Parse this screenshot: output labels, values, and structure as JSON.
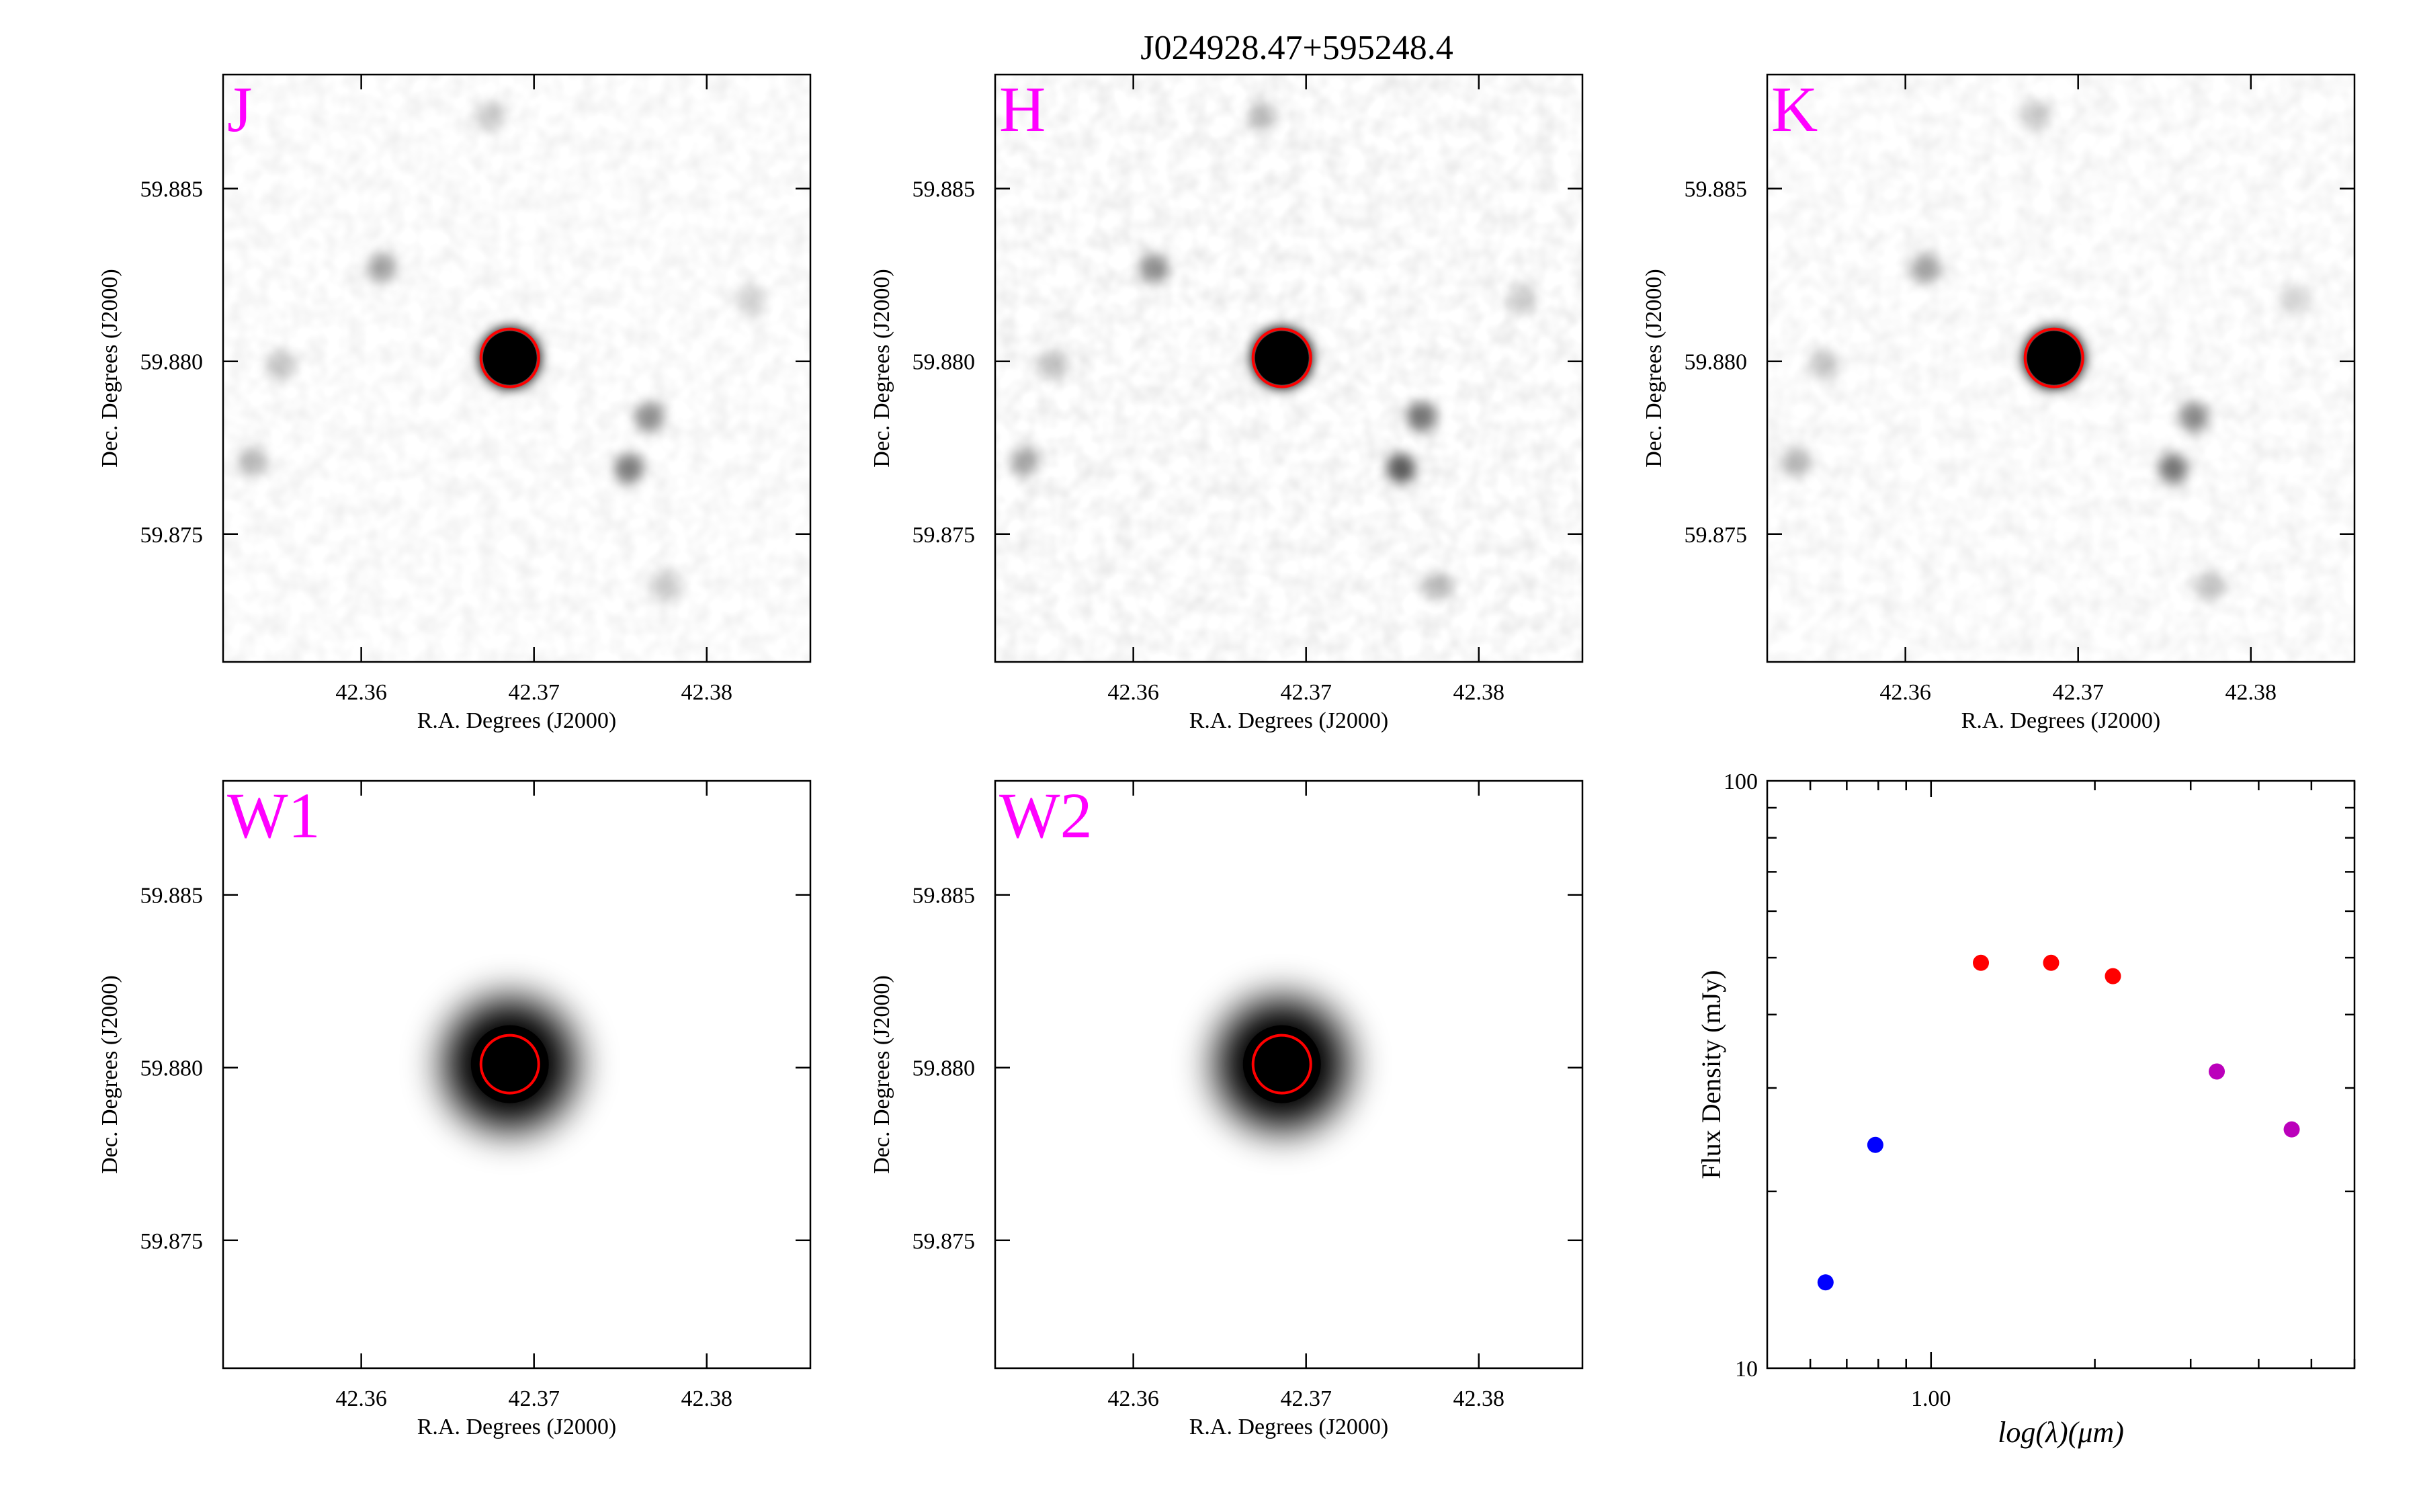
{
  "figure": {
    "title": "J024928.47+595248.4"
  },
  "image_panels": [
    {
      "band": "J",
      "grid": 0,
      "dark": 0.55
    },
    {
      "band": "H",
      "grid": 1,
      "dark": 0.72
    },
    {
      "band": "K",
      "grid": 2,
      "dark": 0.58
    },
    {
      "band": "W1",
      "grid": 3,
      "dark": 1.0
    },
    {
      "band": "W2",
      "grid": 4,
      "dark": 1.0
    }
  ],
  "image_axes": {
    "xlabel": "R.A. Degrees (J2000)",
    "ylabel": "Dec. Degrees (J2000)",
    "xticks": [
      "42.36",
      "42.37",
      "42.38"
    ],
    "yticks": [
      "59.885",
      "59.880",
      "59.875"
    ],
    "xlim": [
      42.352,
      42.386
    ],
    "ylim": [
      59.8713,
      59.8883
    ]
  },
  "target": {
    "ra": 42.3686,
    "dec": 59.8801
  },
  "field_stars": [
    {
      "ra": 42.3612,
      "dec": 59.8827,
      "strength": 0.45
    },
    {
      "ra": 42.3767,
      "dec": 59.8784,
      "strength": 0.6
    },
    {
      "ra": 42.3755,
      "dec": 59.8769,
      "strength": 0.75
    },
    {
      "ra": 42.3537,
      "dec": 59.8771,
      "strength": 0.3
    },
    {
      "ra": 42.3553,
      "dec": 59.8799,
      "strength": 0.2
    },
    {
      "ra": 42.3675,
      "dec": 59.8871,
      "strength": 0.18
    },
    {
      "ra": 42.3776,
      "dec": 59.8735,
      "strength": 0.2
    },
    {
      "ra": 42.3825,
      "dec": 59.8818,
      "strength": 0.12
    }
  ],
  "colors": {
    "label": "#ff00ff",
    "circle": "#ff0000",
    "optical": "#0000ff",
    "twomass": "#ff0000",
    "wise": "#bb00bb"
  },
  "chart_data": {
    "type": "scatter",
    "xlabel": "log(λ)(μm)",
    "ylabel": "Flux Density (mJy)",
    "xscale": "log",
    "yscale": "log",
    "xlim": [
      0.5,
      6.0
    ],
    "ylim": [
      10,
      100
    ],
    "xticks": [
      "1.00"
    ],
    "yticks": [
      "10",
      "100"
    ],
    "series": [
      {
        "color": "#0000ff",
        "x": [
          0.64,
          0.79
        ],
        "y": [
          14.0,
          24.0
        ]
      },
      {
        "color": "#ff0000",
        "x": [
          1.235,
          1.662,
          2.159
        ],
        "y": [
          49.0,
          49.0,
          46.5
        ]
      },
      {
        "color": "#bb00bb",
        "x": [
          3.35,
          4.6
        ],
        "y": [
          32.0,
          25.5
        ]
      }
    ]
  }
}
